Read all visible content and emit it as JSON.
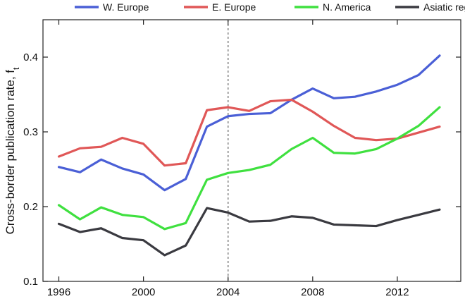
{
  "chart_data": {
    "type": "line",
    "ylabel": "Cross-border publication rate, f",
    "ylabel_sub": "t",
    "xlim": [
      1995.25,
      2015.0
    ],
    "ylim": [
      0.1,
      0.45
    ],
    "x_ticks": [
      1996,
      2000,
      2004,
      2008,
      2012
    ],
    "x_tick_labels": [
      "1996",
      "2000",
      "2004",
      "2008",
      "2012"
    ],
    "y_ticks": [
      0.1,
      0.2,
      0.3,
      0.4
    ],
    "y_tick_labels": [
      "0.1",
      "0.2",
      "0.3",
      "0.4"
    ],
    "vertical_marker_x": 2004,
    "legend_position": "top-outside",
    "x": [
      1996,
      1997,
      1998,
      1999,
      2000,
      2001,
      2002,
      2003,
      2004,
      2005,
      2006,
      2007,
      2008,
      2009,
      2010,
      2011,
      2012,
      2013,
      2014
    ],
    "series": [
      {
        "name": "W. Europe",
        "color": "#4a5fd6",
        "values": [
          0.253,
          0.246,
          0.263,
          0.251,
          0.243,
          0.222,
          0.237,
          0.307,
          0.321,
          0.324,
          0.325,
          0.343,
          0.358,
          0.345,
          0.347,
          0.354,
          0.363,
          0.376,
          0.402
        ]
      },
      {
        "name": "E. Europe",
        "color": "#e05757",
        "values": [
          0.267,
          0.278,
          0.28,
          0.292,
          0.284,
          0.255,
          0.258,
          0.329,
          0.333,
          0.328,
          0.341,
          0.343,
          0.327,
          0.308,
          0.292,
          0.289,
          0.291,
          0.299,
          0.307
        ]
      },
      {
        "name": "N. America",
        "color": "#3fe03f",
        "values": [
          0.202,
          0.183,
          0.199,
          0.189,
          0.186,
          0.17,
          0.178,
          0.236,
          0.245,
          0.249,
          0.256,
          0.277,
          0.292,
          0.272,
          0.271,
          0.277,
          0.291,
          0.308,
          0.333
        ]
      },
      {
        "name": "Asiatic region",
        "color": "#3a3a40",
        "values": [
          0.177,
          0.166,
          0.171,
          0.158,
          0.155,
          0.135,
          0.148,
          0.198,
          0.192,
          0.18,
          0.181,
          0.187,
          0.185,
          0.176,
          0.175,
          0.174,
          0.182,
          0.189,
          0.196
        ]
      }
    ]
  }
}
